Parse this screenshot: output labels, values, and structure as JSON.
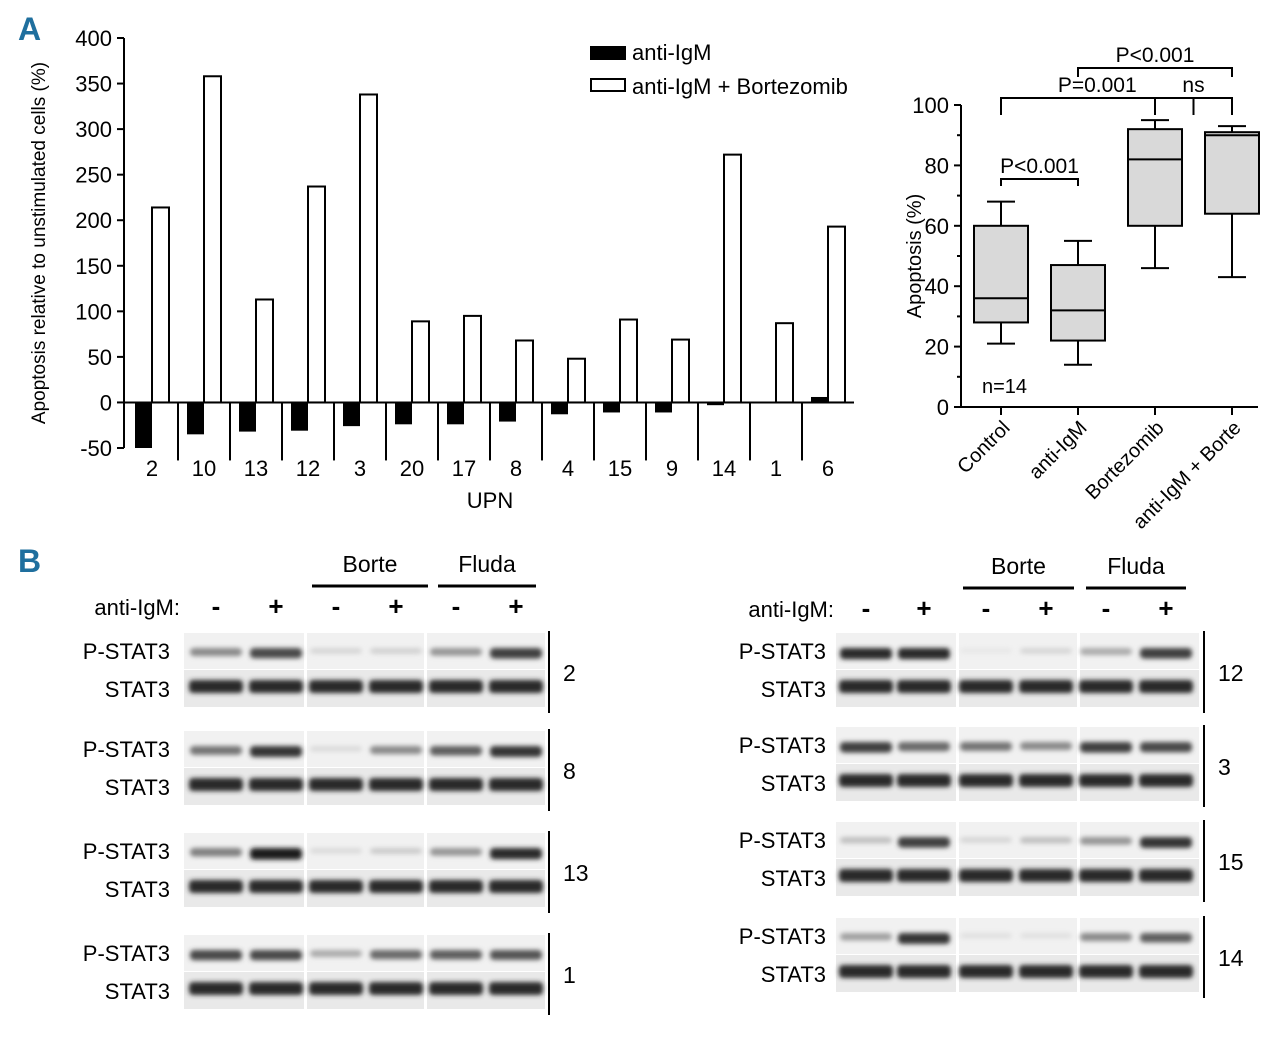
{
  "panel_a_label": "A",
  "panel_b_label": "B",
  "colors": {
    "panel_label": "#1f6f9e",
    "box_fill": "#d9d9d9",
    "black": "#000000"
  },
  "chart_data": [
    {
      "type": "bar",
      "xlabel": "UPN",
      "ylabel": "Apoptosis relative to unstimulated cells (%)",
      "ylim": [
        -50,
        400
      ],
      "yticks": [
        400,
        350,
        300,
        250,
        200,
        150,
        100,
        50,
        0,
        -50
      ],
      "categories": [
        "2",
        "10",
        "13",
        "12",
        "3",
        "20",
        "17",
        "8",
        "4",
        "15",
        "9",
        "14",
        "1",
        "6"
      ],
      "legend_position": "top-right",
      "series": [
        {
          "name": "anti-IgM",
          "color": "#000000",
          "values": [
            -50,
            -35,
            -32,
            -31,
            -26,
            -24,
            -24,
            -21,
            -13,
            -11,
            -11,
            -3,
            0,
            6
          ]
        },
        {
          "name": "anti-IgM + Bortezomib",
          "color": "#ffffff",
          "values": [
            214,
            358,
            113,
            237,
            338,
            89,
            95,
            68,
            48,
            91,
            69,
            272,
            87,
            193
          ]
        }
      ]
    },
    {
      "type": "box",
      "ylabel": "Apoptosis (%)",
      "ylim": [
        0,
        100
      ],
      "yticks": [
        100,
        80,
        60,
        40,
        20,
        0
      ],
      "annotation": "n=14",
      "categories": [
        "Control",
        "anti-IgM",
        "Bortezomib",
        "anti-IgM + Borte"
      ],
      "boxes": [
        {
          "min": 21,
          "q1": 28,
          "median": 36,
          "q3": 60,
          "max": 68
        },
        {
          "min": 14,
          "q1": 22,
          "median": 32,
          "q3": 47,
          "max": 55
        },
        {
          "min": 46,
          "q1": 60,
          "median": 82,
          "q3": 92,
          "max": 95
        },
        {
          "min": 43,
          "q1": 64,
          "median": 90,
          "q3": 91,
          "max": 93
        }
      ],
      "comparisons": [
        {
          "from": 0,
          "to": 1,
          "text": "P<0.001"
        },
        {
          "from": 0,
          "to": 2.5,
          "text": "P=0.001"
        },
        {
          "from": 2,
          "to": 3,
          "text": "ns"
        },
        {
          "from": 1,
          "to": 3,
          "text": "P<0.001"
        }
      ]
    }
  ],
  "western_blots": {
    "treatment_groups": [
      "Borte",
      "Fluda"
    ],
    "stim_label": "anti-IgM:",
    "lane_signs": [
      "-",
      "+",
      "-",
      "+",
      "-",
      "+"
    ],
    "row_labels": [
      "P-STAT3",
      "STAT3"
    ],
    "left_patients": [
      "2",
      "8",
      "13",
      "1"
    ],
    "right_patients": [
      "12",
      "3",
      "15",
      "14"
    ],
    "left_pstat3_intensity": [
      [
        0.45,
        0.75,
        0.1,
        0.12,
        0.4,
        0.8
      ],
      [
        0.55,
        0.85,
        0.08,
        0.45,
        0.65,
        0.85
      ],
      [
        0.5,
        0.95,
        0.08,
        0.15,
        0.4,
        0.9
      ],
      [
        0.75,
        0.75,
        0.3,
        0.6,
        0.65,
        0.7
      ]
    ],
    "right_pstat3_intensity": [
      [
        0.9,
        0.9,
        0.02,
        0.1,
        0.3,
        0.8
      ],
      [
        0.8,
        0.6,
        0.55,
        0.45,
        0.8,
        0.75
      ],
      [
        0.2,
        0.8,
        0.1,
        0.2,
        0.4,
        0.85
      ],
      [
        0.35,
        0.85,
        0.05,
        0.05,
        0.45,
        0.65
      ]
    ]
  }
}
